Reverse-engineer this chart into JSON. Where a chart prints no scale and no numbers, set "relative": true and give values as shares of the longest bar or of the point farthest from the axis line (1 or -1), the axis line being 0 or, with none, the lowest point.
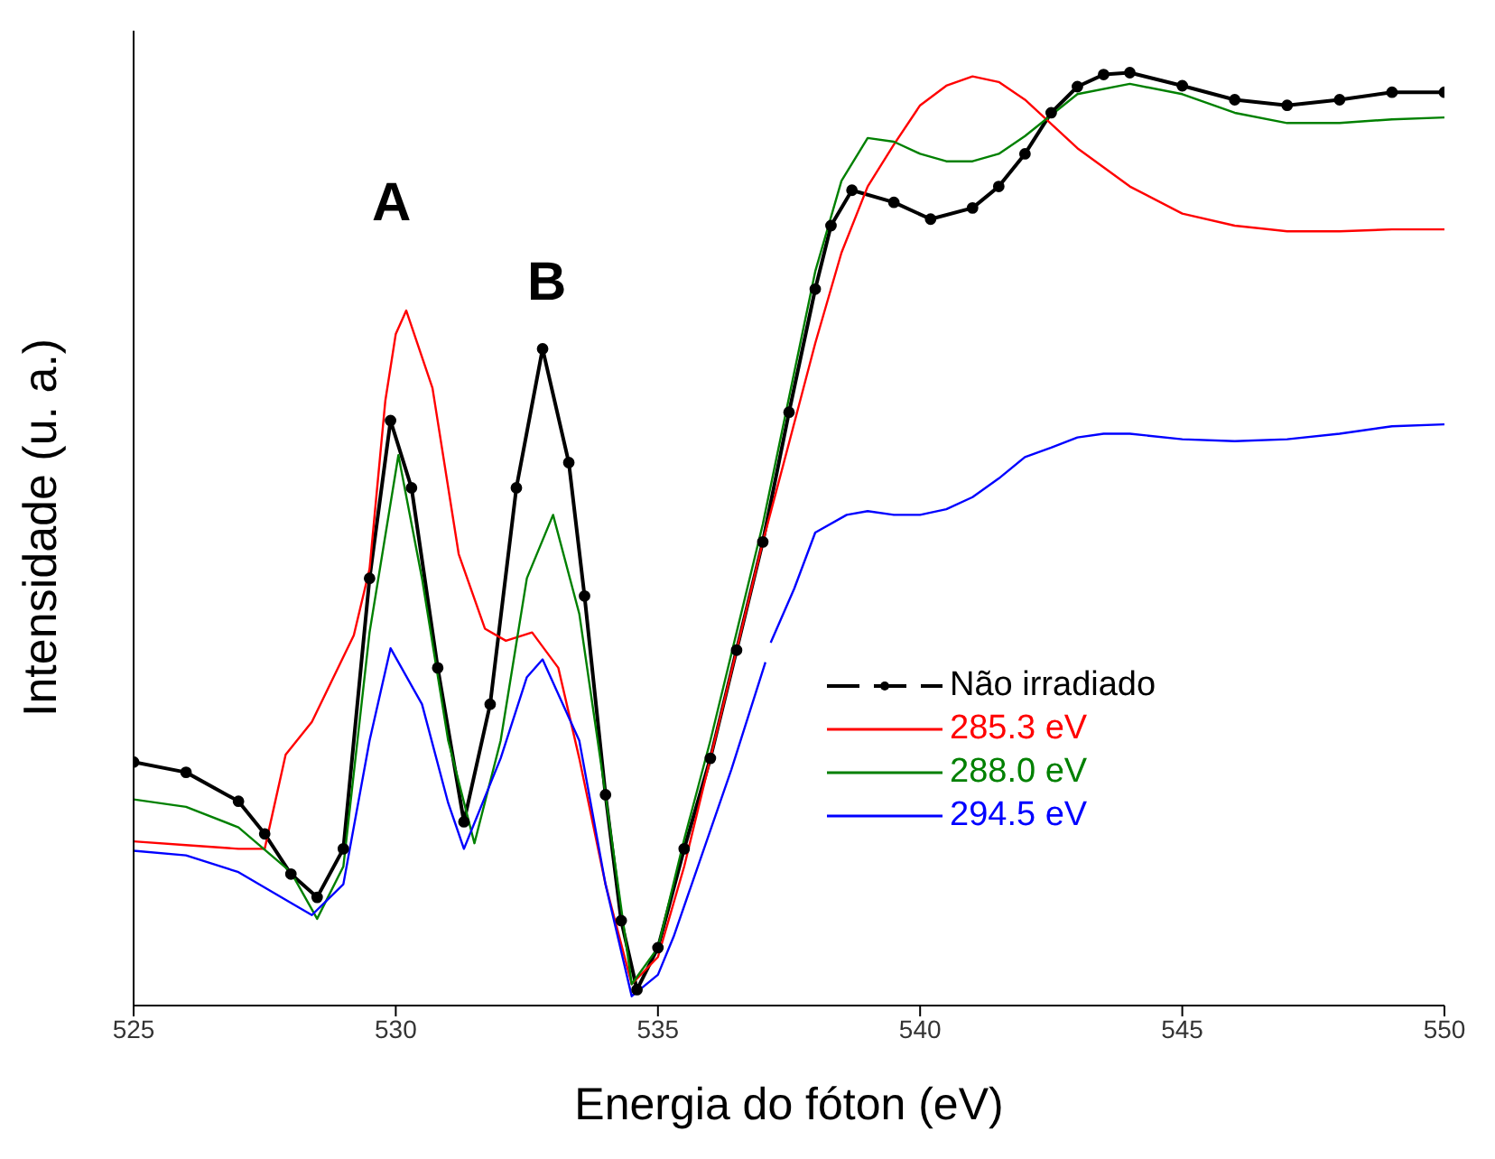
{
  "chart_data": {
    "type": "line",
    "relative": true,
    "xlabel": "Energia do fóton (eV)",
    "ylabel": "Intensidade (u. a.)",
    "xlim": [
      525,
      550
    ],
    "xticks": [
      525,
      530,
      535,
      540,
      545,
      550
    ],
    "grid": false,
    "legend": "bottom right",
    "tick_labels": "x",
    "annotations": [
      "A",
      "B"
    ],
    "series": [
      {
        "name": "Não irradiado",
        "color": "#000000",
        "marker": "circle",
        "x": [
          525,
          526,
          527,
          527.5,
          528,
          528.5,
          529,
          529.5,
          529.9,
          530.3,
          530.8,
          531.3,
          531.8,
          532.3,
          532.8,
          533.3,
          533.6,
          534,
          534.3,
          534.6,
          535,
          535.5,
          536,
          536.5,
          537,
          537.5,
          538,
          538.3,
          538.7,
          539.5,
          540.2,
          541,
          541.5,
          542,
          542.5,
          543,
          543.5,
          544,
          545,
          546,
          547,
          548,
          549,
          550
        ],
        "values": [
          0.261,
          0.25,
          0.219,
          0.184,
          0.141,
          0.116,
          0.168,
          0.458,
          0.627,
          0.555,
          0.362,
          0.197,
          0.323,
          0.555,
          0.704,
          0.582,
          0.439,
          0.226,
          0.091,
          0.017,
          0.062,
          0.168,
          0.265,
          0.381,
          0.497,
          0.636,
          0.768,
          0.836,
          0.874,
          0.861,
          0.843,
          0.855,
          0.878,
          0.913,
          0.957,
          0.985,
          0.998,
          1,
          0.986,
          0.971,
          0.965,
          0.971,
          0.979,
          0.979
        ]
      },
      {
        "name": "285.3 eV",
        "color": "#ff0000",
        "marker": "none",
        "x": [
          525,
          526,
          527,
          527.5,
          527.9,
          528.4,
          529.2,
          529.5,
          529.8,
          530,
          530.2,
          530.7,
          531.2,
          531.7,
          532.1,
          532.6,
          533.1,
          533.5,
          534,
          534.5,
          535,
          535.5,
          536,
          536.5,
          537,
          537.5,
          538,
          538.5,
          539,
          539.5,
          540,
          540.5,
          541,
          541.5,
          542,
          543,
          544,
          545,
          546,
          547,
          548,
          549,
          550
        ],
        "values": [
          0.176,
          0.172,
          0.168,
          0.168,
          0.269,
          0.304,
          0.397,
          0.468,
          0.648,
          0.72,
          0.745,
          0.662,
          0.484,
          0.404,
          0.391,
          0.4,
          0.362,
          0.265,
          0.13,
          0.023,
          0.052,
          0.149,
          0.265,
          0.381,
          0.497,
          0.603,
          0.71,
          0.807,
          0.878,
          0.923,
          0.965,
          0.986,
          0.996,
          0.99,
          0.971,
          0.919,
          0.878,
          0.849,
          0.836,
          0.83,
          0.83,
          0.832,
          0.832
        ]
      },
      {
        "name": "288.0 eV",
        "color": "#008000",
        "marker": "none",
        "x": [
          525,
          526,
          527,
          528,
          528.5,
          529,
          529.5,
          530.05,
          530.5,
          531,
          531.5,
          532,
          532.5,
          533,
          533.5,
          534,
          534.5,
          535,
          535.5,
          536,
          536.5,
          537,
          537.5,
          538,
          538.5,
          539,
          539.5,
          540,
          540.5,
          541,
          541.5,
          542,
          543,
          544,
          545,
          546,
          547,
          548,
          549,
          550
        ],
        "values": [
          0.221,
          0.213,
          0.191,
          0.143,
          0.093,
          0.149,
          0.4,
          0.59,
          0.458,
          0.284,
          0.174,
          0.284,
          0.458,
          0.526,
          0.42,
          0.226,
          0.023,
          0.062,
          0.178,
          0.284,
          0.4,
          0.516,
          0.652,
          0.787,
          0.884,
          0.93,
          0.926,
          0.913,
          0.905,
          0.905,
          0.913,
          0.932,
          0.977,
          0.988,
          0.977,
          0.957,
          0.946,
          0.946,
          0.95,
          0.952
        ]
      },
      {
        "name": "294.5 eV",
        "color": "#0000ff",
        "marker": "none",
        "x": [
          525,
          526,
          527,
          528,
          528.4,
          529,
          529.5,
          529.9,
          530.5,
          531,
          531.3,
          532,
          532.5,
          532.8,
          533.5,
          534,
          534.5,
          535,
          535.3,
          536.4,
          537.05,
          537.1,
          537.15,
          537.6,
          538,
          538.6,
          539,
          539.5,
          540,
          540.5,
          541,
          541.5,
          542,
          542.5,
          543,
          543.5,
          544,
          545,
          546,
          547,
          548,
          549,
          550
        ],
        "values": [
          0.166,
          0.161,
          0.143,
          0.11,
          0.097,
          0.13,
          0.284,
          0.383,
          0.323,
          0.217,
          0.168,
          0.265,
          0.352,
          0.371,
          0.284,
          0.13,
          0.01,
          0.033,
          0.074,
          0.253,
          0.368,
          null,
          0.389,
          0.447,
          0.507,
          0.526,
          0.53,
          0.526,
          0.526,
          0.532,
          0.545,
          0.565,
          0.588,
          0.598,
          0.609,
          0.613,
          0.613,
          0.607,
          0.605,
          0.607,
          0.613,
          0.621,
          0.623
        ]
      }
    ]
  }
}
